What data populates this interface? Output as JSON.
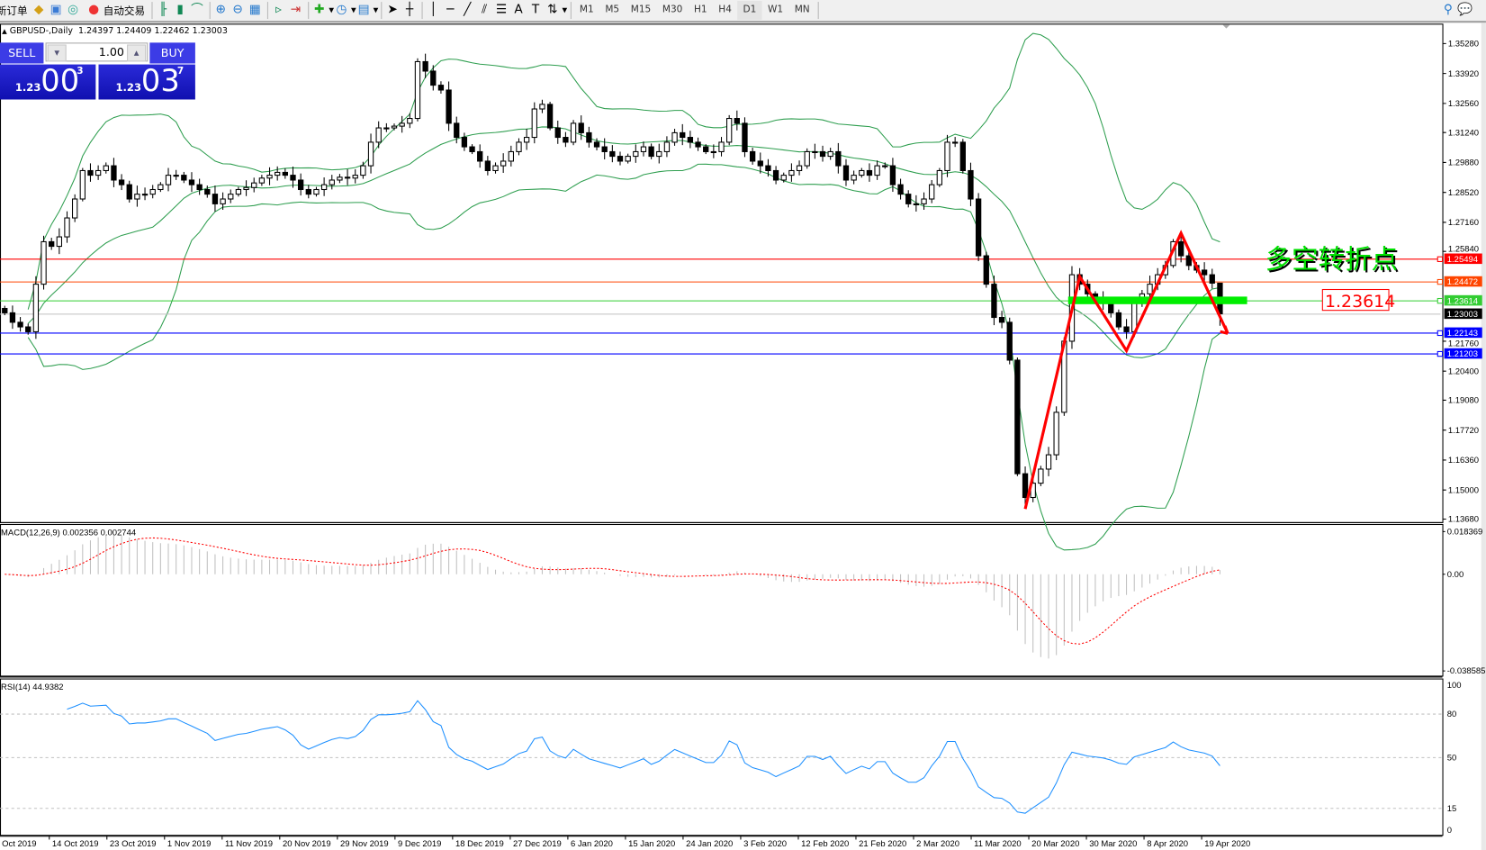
{
  "toolbar": {
    "new_order": "新订单",
    "auto_trading": "自动交易",
    "timeframes": [
      "M1",
      "M5",
      "M15",
      "M30",
      "H1",
      "H4",
      "D1",
      "W1",
      "MN"
    ],
    "active_timeframe": "D1"
  },
  "chart_header": {
    "symbol": "GBPUSD-,Daily",
    "ohlc": "1.24397 1.24409 1.22462 1.23003"
  },
  "trade_panel": {
    "sell_label": "SELL",
    "buy_label": "BUY",
    "lot": "1.00",
    "bid_big": "1.23",
    "bid_pips": "00",
    "bid_frac": "3",
    "ask_big": "1.23",
    "ask_pips": "03",
    "ask_frac": "7"
  },
  "annotations": {
    "title": "多空转折点",
    "level_label": "1.23614",
    "title_color": "#00e000",
    "zigzag_color": "#ff0000",
    "zone_color": "#00ee00"
  },
  "chart_data": {
    "type": "candlestick",
    "ylim": [
      1.1368,
      1.3528
    ],
    "closes": [
      1.2305,
      1.2262,
      1.2241,
      1.2219,
      1.2435,
      1.2628,
      1.2607,
      1.265,
      1.2736,
      1.2822,
      1.2951,
      1.293,
      1.2951,
      1.2973,
      1.2908,
      1.2887,
      1.2822,
      1.2844,
      1.2844,
      1.2865,
      1.2887,
      1.293,
      1.293,
      1.2908,
      1.2887,
      1.2865,
      1.2844,
      1.28,
      1.2822,
      1.2844,
      1.2865,
      1.2874,
      1.2895,
      1.2917,
      1.293,
      1.2943,
      1.293,
      1.2908,
      1.2865,
      1.2844,
      1.2865,
      1.2887,
      1.2908,
      1.2921,
      1.2917,
      1.293,
      1.2973,
      1.308,
      1.3145,
      1.3145,
      1.3153,
      1.3166,
      1.3188,
      1.3446,
      1.3403,
      1.3339,
      1.3317,
      1.3166,
      1.3102,
      1.3059,
      1.3037,
      1.2994,
      1.2951,
      1.2973,
      1.2994,
      1.3037,
      1.308,
      1.3102,
      1.3231,
      1.3252,
      1.3145,
      1.3102,
      1.308,
      1.3166,
      1.3123,
      1.308,
      1.3059,
      1.3037,
      1.3016,
      1.2994,
      1.3016,
      1.3037,
      1.3059,
      1.3016,
      1.3037,
      1.308,
      1.3123,
      1.3102,
      1.308,
      1.3059,
      1.3037,
      1.3037,
      1.308,
      1.3188,
      1.3166,
      1.3037,
      1.2994,
      1.2973,
      1.2951,
      1.2908,
      1.293,
      1.2951,
      1.2973,
      1.3037,
      1.3037,
      1.3016,
      1.3037,
      1.2973,
      1.2908,
      1.293,
      1.2951,
      1.293,
      1.2973,
      1.2973,
      1.2887,
      1.2844,
      1.28,
      1.28,
      1.2822,
      1.2887,
      1.2951,
      1.308,
      1.308,
      1.2951,
      1.2822,
      1.2564,
      1.2435,
      1.2284,
      1.2262,
      1.209,
      1.1574,
      1.1466,
      1.1531,
      1.1595,
      1.166,
      1.1853,
      1.2176,
      1.2478,
      1.2435,
      1.2391,
      1.237,
      1.2348,
      1.2305,
      1.2241,
      1.2219,
      1.2348,
      1.2391,
      1.2435,
      1.2478,
      1.252,
      1.2628,
      1.2564,
      1.252,
      1.2499,
      1.2478,
      1.24397,
      1.23003
    ],
    "last_bar": {
      "open": 1.24397,
      "high": 1.24409,
      "low": 1.22462,
      "close": 1.23003
    },
    "price_ticks": [
      "1.35280",
      "1.33920",
      "1.32560",
      "1.31240",
      "1.29880",
      "1.28520",
      "1.27160",
      "1.25840",
      "1.21760",
      "1.20400",
      "1.19080",
      "1.17720",
      "1.16360",
      "1.15000",
      "1.13680"
    ],
    "hlines": [
      {
        "price": "1.25494",
        "color": "#ff0000"
      },
      {
        "price": "1.24472",
        "color": "#ff4500"
      },
      {
        "price": "1.23614",
        "color": "#32cd32"
      },
      {
        "price": "1.23003",
        "color": "#000000"
      },
      {
        "price": "1.22143",
        "color": "#0000ff"
      },
      {
        "price": "1.21203",
        "color": "#0000ff"
      }
    ],
    "bollinger_color": "#2e9e4f",
    "zigzag": [
      [
        131,
        1.1414
      ],
      [
        138,
        1.2469
      ],
      [
        144,
        1.2133
      ],
      [
        151,
        1.2667
      ],
      [
        157,
        1.2211
      ]
    ],
    "zone": {
      "from_bar": 137,
      "to_bar": 159,
      "price": 1.23614
    },
    "date_labels": [
      "Oct 2019",
      "14 Oct 2019",
      "23 Oct 2019",
      "1 Nov 2019",
      "11 Nov 2019",
      "20 Nov 2019",
      "29 Nov 2019",
      "9 Dec 2019",
      "18 Dec 2019",
      "27 Dec 2019",
      "6 Jan 2020",
      "15 Jan 2020",
      "24 Jan 2020",
      "3 Feb 2020",
      "12 Feb 2020",
      "21 Feb 2020",
      "2 Mar 2020",
      "11 Mar 2020",
      "20 Mar 2020",
      "30 Mar 2020",
      "8 Apr 2020",
      "19 Apr 2020"
    ],
    "macd": {
      "label": "MACD(12,26,9) 0.002356 0.002744",
      "ticks": [
        "0.018369",
        "0.00",
        "-0.038585"
      ],
      "ylim": [
        -0.038585,
        0.018369
      ]
    },
    "rsi": {
      "label": "RSI(14) 44.9382",
      "ticks": [
        "100",
        "80",
        "50",
        "15",
        "0"
      ],
      "levels": [
        80,
        50,
        15
      ],
      "color": "#1e90ff"
    }
  }
}
